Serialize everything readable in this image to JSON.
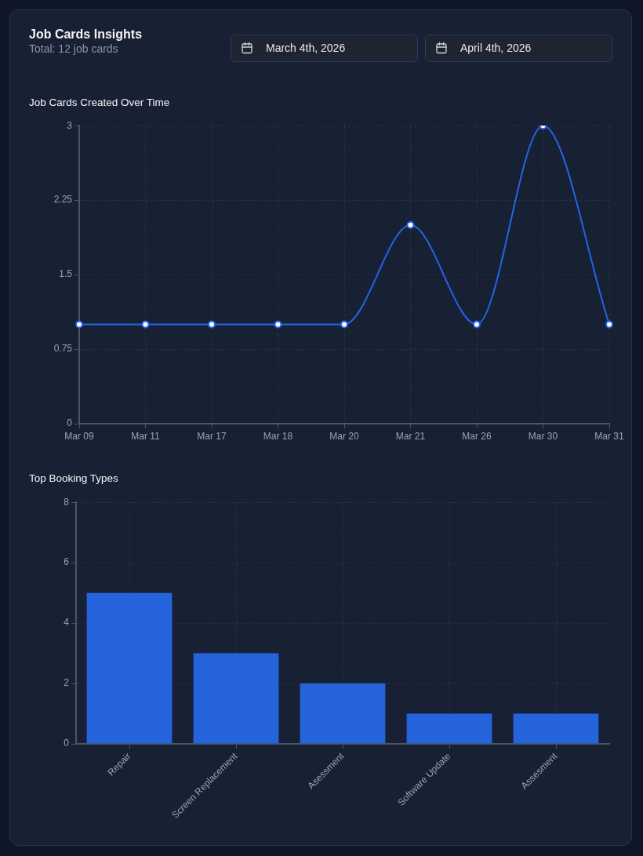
{
  "chart_data": [
    {
      "type": "other",
      "title": "Job Cards Insights",
      "subtitle": "Total: 12 job cards",
      "annotations": [
        "March 4th, 2026",
        "April 4th, 2026"
      ]
    },
    {
      "type": "line",
      "title": "Job Cards Created Over Time",
      "categories": [
        "Mar 09",
        "Mar 11",
        "Mar 17",
        "Mar 18",
        "Mar 20",
        "Mar 21",
        "Mar 26",
        "Mar 30",
        "Mar 31"
      ],
      "values": [
        1,
        1,
        1,
        1,
        1,
        2,
        1,
        3,
        1
      ],
      "color": "#2563eb",
      "ylim": [
        0,
        3
      ],
      "yticks": [
        0,
        0.75,
        1.5,
        2.25,
        3
      ],
      "grid": true,
      "marker": "circle"
    },
    {
      "type": "bar",
      "title": "Top Booking Types",
      "categories": [
        "Repair",
        "Screen Replacement",
        "Asessment",
        "Software Update",
        "Assesment"
      ],
      "values": [
        5,
        3,
        2,
        1,
        1
      ],
      "color": "#2563dc",
      "ylim": [
        0,
        8
      ],
      "yticks": [
        0,
        2,
        4,
        6,
        8
      ],
      "grid": true
    }
  ]
}
